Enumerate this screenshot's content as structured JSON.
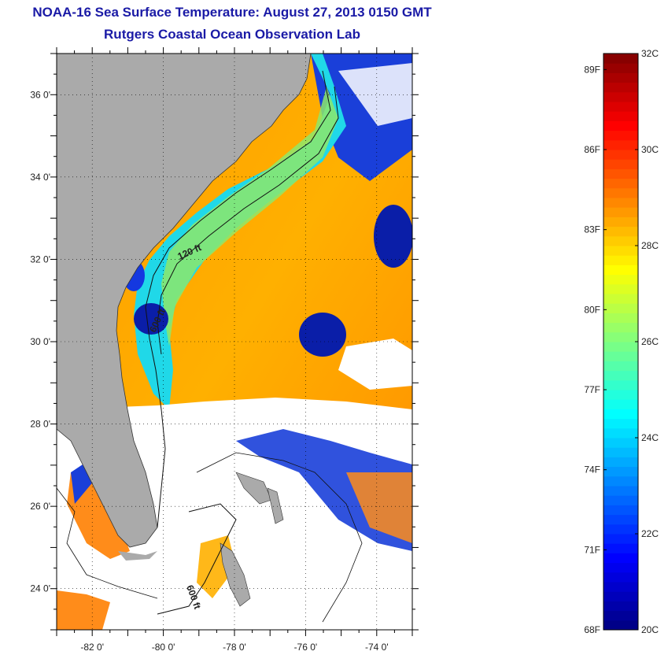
{
  "title": "NOAA-16 Sea Surface Temperature:  August 27, 2013 0150 GMT",
  "subtitle": "Rutgers Coastal Ocean Observation Lab",
  "map": {
    "lon_ticks": [
      "-82 0'",
      "-80 0'",
      "-78 0'",
      "-76 0'",
      "-74 0'"
    ],
    "lat_ticks": [
      "36 0'",
      "34 0'",
      "32 0'",
      "30 0'",
      "28 0'",
      "26 0'",
      "24 0'"
    ],
    "lon_values": [
      -82,
      -80,
      -78,
      -76,
      -74
    ],
    "lat_values": [
      36,
      34,
      32,
      30,
      28,
      26,
      24
    ],
    "lon_range": [
      -83,
      -73
    ],
    "lat_range": [
      23,
      37
    ],
    "depth_labels": [
      "120 ft",
      "600 ft",
      "600 ft"
    ],
    "land_color": "#aaaaaa",
    "cloud_color": "#ffffff"
  },
  "colorbar": {
    "fahrenheit_labels": [
      "89F",
      "86F",
      "83F",
      "80F",
      "77F",
      "74F",
      "71F",
      "68F"
    ],
    "celsius_labels": [
      "32C",
      "30C",
      "28C",
      "26C",
      "24C",
      "22C",
      "20C"
    ],
    "fahrenheit_values": [
      89,
      86,
      83,
      80,
      77,
      74,
      71,
      68
    ],
    "celsius_values": [
      32,
      30,
      28,
      26,
      24,
      22,
      20
    ],
    "range_c": [
      20,
      32
    ],
    "colors": [
      "#00007f",
      "#0000ff",
      "#0080ff",
      "#00ffff",
      "#80ff80",
      "#ffff00",
      "#ff8000",
      "#ff0000",
      "#7f0000"
    ]
  }
}
